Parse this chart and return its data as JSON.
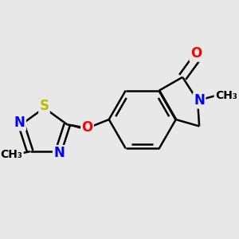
{
  "bg_color": "#e8e8e8",
  "bond_color": "#000000",
  "bond_width": 1.8,
  "atom_colors": {
    "N": "#0000ff",
    "O": "#ff0000",
    "S": "#bbbb00",
    "C": "#000000"
  },
  "font_size_atom": 11,
  "font_size_methyl": 9.5
}
